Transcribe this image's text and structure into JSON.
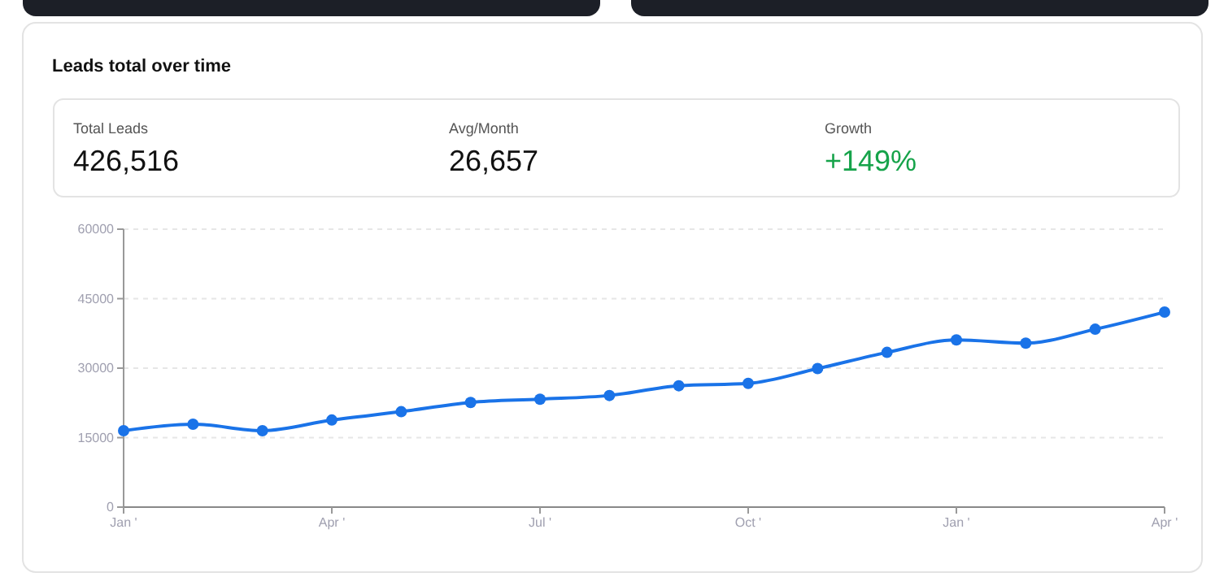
{
  "chart_data": [
    {
      "type": "other",
      "title": "Leads total over time",
      "annotations": [
        "Total Leads",
        "426,516",
        "Avg/Month",
        "26,657",
        "Growth",
        "+149%"
      ]
    },
    {
      "type": "line",
      "categories": [
        "Jan '",
        null,
        null,
        "Apr '",
        null,
        null,
        "Jul '",
        null,
        null,
        "Oct '",
        null,
        null,
        "Jan '",
        null,
        null,
        "Apr '"
      ],
      "series": [
        {
          "color": "#1a73e8",
          "values": [
            16500,
            17900,
            16500,
            18800,
            20600,
            22600,
            23300,
            24100,
            26200,
            26700,
            29900,
            33400,
            36100,
            35400,
            38400,
            42100
          ]
        }
      ],
      "ylim": [
        0,
        60000
      ],
      "yticks": [
        0,
        15000,
        30000,
        45000,
        60000
      ],
      "grid": "y",
      "marker": "circle",
      "line_style": "solid"
    }
  ]
}
